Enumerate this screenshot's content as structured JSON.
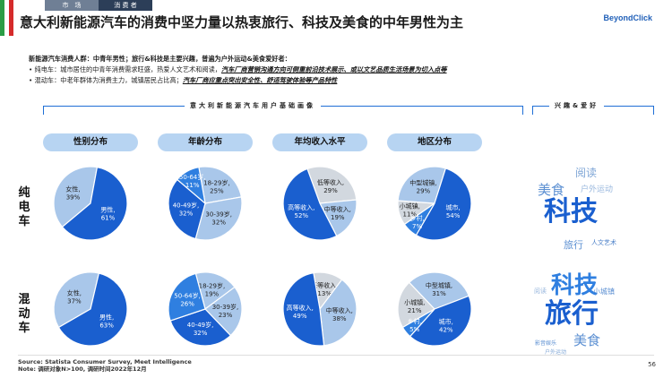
{
  "nav": {
    "tabs": [
      "市　场",
      "消 费 者"
    ],
    "active": 1
  },
  "flag_colors": [
    "#2a9d45",
    "#ffffff",
    "#d52b2b"
  ],
  "title": "意大利新能源汽车的消费中坚力量以热衷旅行、科技及美食的中年男性为主",
  "logo": "BeyondClick",
  "summary": {
    "head": "新能源汽车消费人群：中青年男性；旅行&科技是主要兴趣，普遍为户外运动&美食爱好者：",
    "bullets": [
      {
        "prefix": "• 纯电车：城市居住的中青年消费需求旺盛，热爱人文艺术和阅读，",
        "highlight": "汽车厂商营销沟通方向可侧重前沿技术展示、或以文艺品质生活场景为切入点等"
      },
      {
        "prefix": "• 混动车：中老年群体为消费主力，城镇居民占比高；",
        "highlight": "汽车厂商应重点突出安全性、舒适驾驶体验等产品特性"
      }
    ]
  },
  "sections": {
    "profile": "意大利新能源汽车用户基础画像",
    "interests": "兴趣&爱好"
  },
  "columns": [
    "性别分布",
    "年龄分布",
    "年均收入水平",
    "地区分布"
  ],
  "rows": [
    "纯电车",
    "混动车"
  ],
  "colors": {
    "dark": "#1a5fcf",
    "mid": "#2f7fe0",
    "light": "#a9c7ea",
    "pale": "#d2d8df"
  },
  "pies": [
    [
      {
        "slices": [
          {
            "label": "女性,",
            "value": "39%",
            "pct": 39,
            "shade": "light"
          },
          {
            "label": "男性,",
            "value": "61%",
            "pct": 61,
            "shade": "dark"
          }
        ]
      },
      {
        "slices": [
          {
            "label": "18-29岁,",
            "value": "25%",
            "pct": 25,
            "shade": "light"
          },
          {
            "label": "30-39岁,",
            "value": "32%",
            "pct": 32,
            "shade": "light"
          },
          {
            "label": "40-49岁,",
            "value": "32%",
            "pct": 32,
            "shade": "dark"
          },
          {
            "label": "50-64岁,",
            "value": "11%",
            "pct": 11,
            "shade": "mid"
          }
        ]
      },
      {
        "slices": [
          {
            "label": "低等收入,",
            "value": "29%",
            "pct": 29,
            "shade": "pale"
          },
          {
            "label": "中等收入,",
            "value": "19%",
            "pct": 19,
            "shade": "light"
          },
          {
            "label": "高等收入,",
            "value": "52%",
            "pct": 52,
            "shade": "dark"
          }
        ]
      },
      {
        "slices": [
          {
            "label": "小城镇,",
            "value": "11%",
            "pct": 11,
            "shade": "pale"
          },
          {
            "label": "中型城镇,",
            "value": "29%",
            "pct": 29,
            "shade": "light"
          },
          {
            "label": "城市,",
            "value": "54%",
            "pct": 54,
            "shade": "dark"
          },
          {
            "label": "乡村,",
            "value": "7%",
            "pct": 7,
            "shade": "mid"
          }
        ]
      }
    ],
    [
      {
        "slices": [
          {
            "label": "女性,",
            "value": "37%",
            "pct": 37,
            "shade": "light"
          },
          {
            "label": "男性,",
            "value": "63%",
            "pct": 63,
            "shade": "dark"
          }
        ]
      },
      {
        "slices": [
          {
            "label": "18-29岁,",
            "value": "19%",
            "pct": 19,
            "shade": "light"
          },
          {
            "label": "30-39岁,",
            "value": "23%",
            "pct": 23,
            "shade": "light"
          },
          {
            "label": "40-49岁,",
            "value": "32%",
            "pct": 32,
            "shade": "dark"
          },
          {
            "label": "50-64岁,",
            "value": "26%",
            "pct": 26,
            "shade": "mid"
          }
        ]
      },
      {
        "slices": [
          {
            "label": "低等收入,",
            "value": "13%",
            "pct": 13,
            "shade": "pale"
          },
          {
            "label": "中等收入,",
            "value": "38%",
            "pct": 38,
            "shade": "light"
          },
          {
            "label": "高等收入,",
            "value": "49%",
            "pct": 49,
            "shade": "dark"
          }
        ]
      },
      {
        "slices": [
          {
            "label": "小城镇,",
            "value": "21%",
            "pct": 21,
            "shade": "pale"
          },
          {
            "label": "中型城镇,",
            "value": "31%",
            "pct": 31,
            "shade": "light"
          },
          {
            "label": "城市,",
            "value": "42%",
            "pct": 42,
            "shade": "dark"
          },
          {
            "label": "乡村,",
            "value": "5%",
            "pct": 5,
            "shade": "mid"
          }
        ]
      }
    ]
  ],
  "clouds": [
    [
      {
        "text": "阅读",
        "color": "#7fa6d6"
      },
      {
        "text": "美食",
        "color": "#5b8fd2"
      },
      {
        "text": "户外运动",
        "color": "#9ab8de"
      },
      {
        "text": "科技",
        "color": "#1a5fcf"
      },
      {
        "text": "旅行",
        "color": "#5b8fd2"
      },
      {
        "text": "人文艺术",
        "color": "#4a7fc8"
      }
    ],
    [
      {
        "text": "阅读",
        "color": "#9ab8de"
      },
      {
        "text": "科技",
        "color": "#2f7fe0"
      },
      {
        "text": "小城镇",
        "color": "#5b8fd2"
      },
      {
        "text": "旅行",
        "color": "#1a5fcf"
      },
      {
        "text": "影音娱乐",
        "color": "#5b8fd2"
      },
      {
        "text": "户外运动",
        "color": "#7fa6d6"
      },
      {
        "text": "美食",
        "color": "#5b8fd2"
      }
    ]
  ],
  "source": {
    "line1": "Source: Statista Consumer Survey, Meet Intelligence",
    "line2": "Note: 调研对象N>100, 调研时间2022年12月"
  },
  "page_number": "56"
}
